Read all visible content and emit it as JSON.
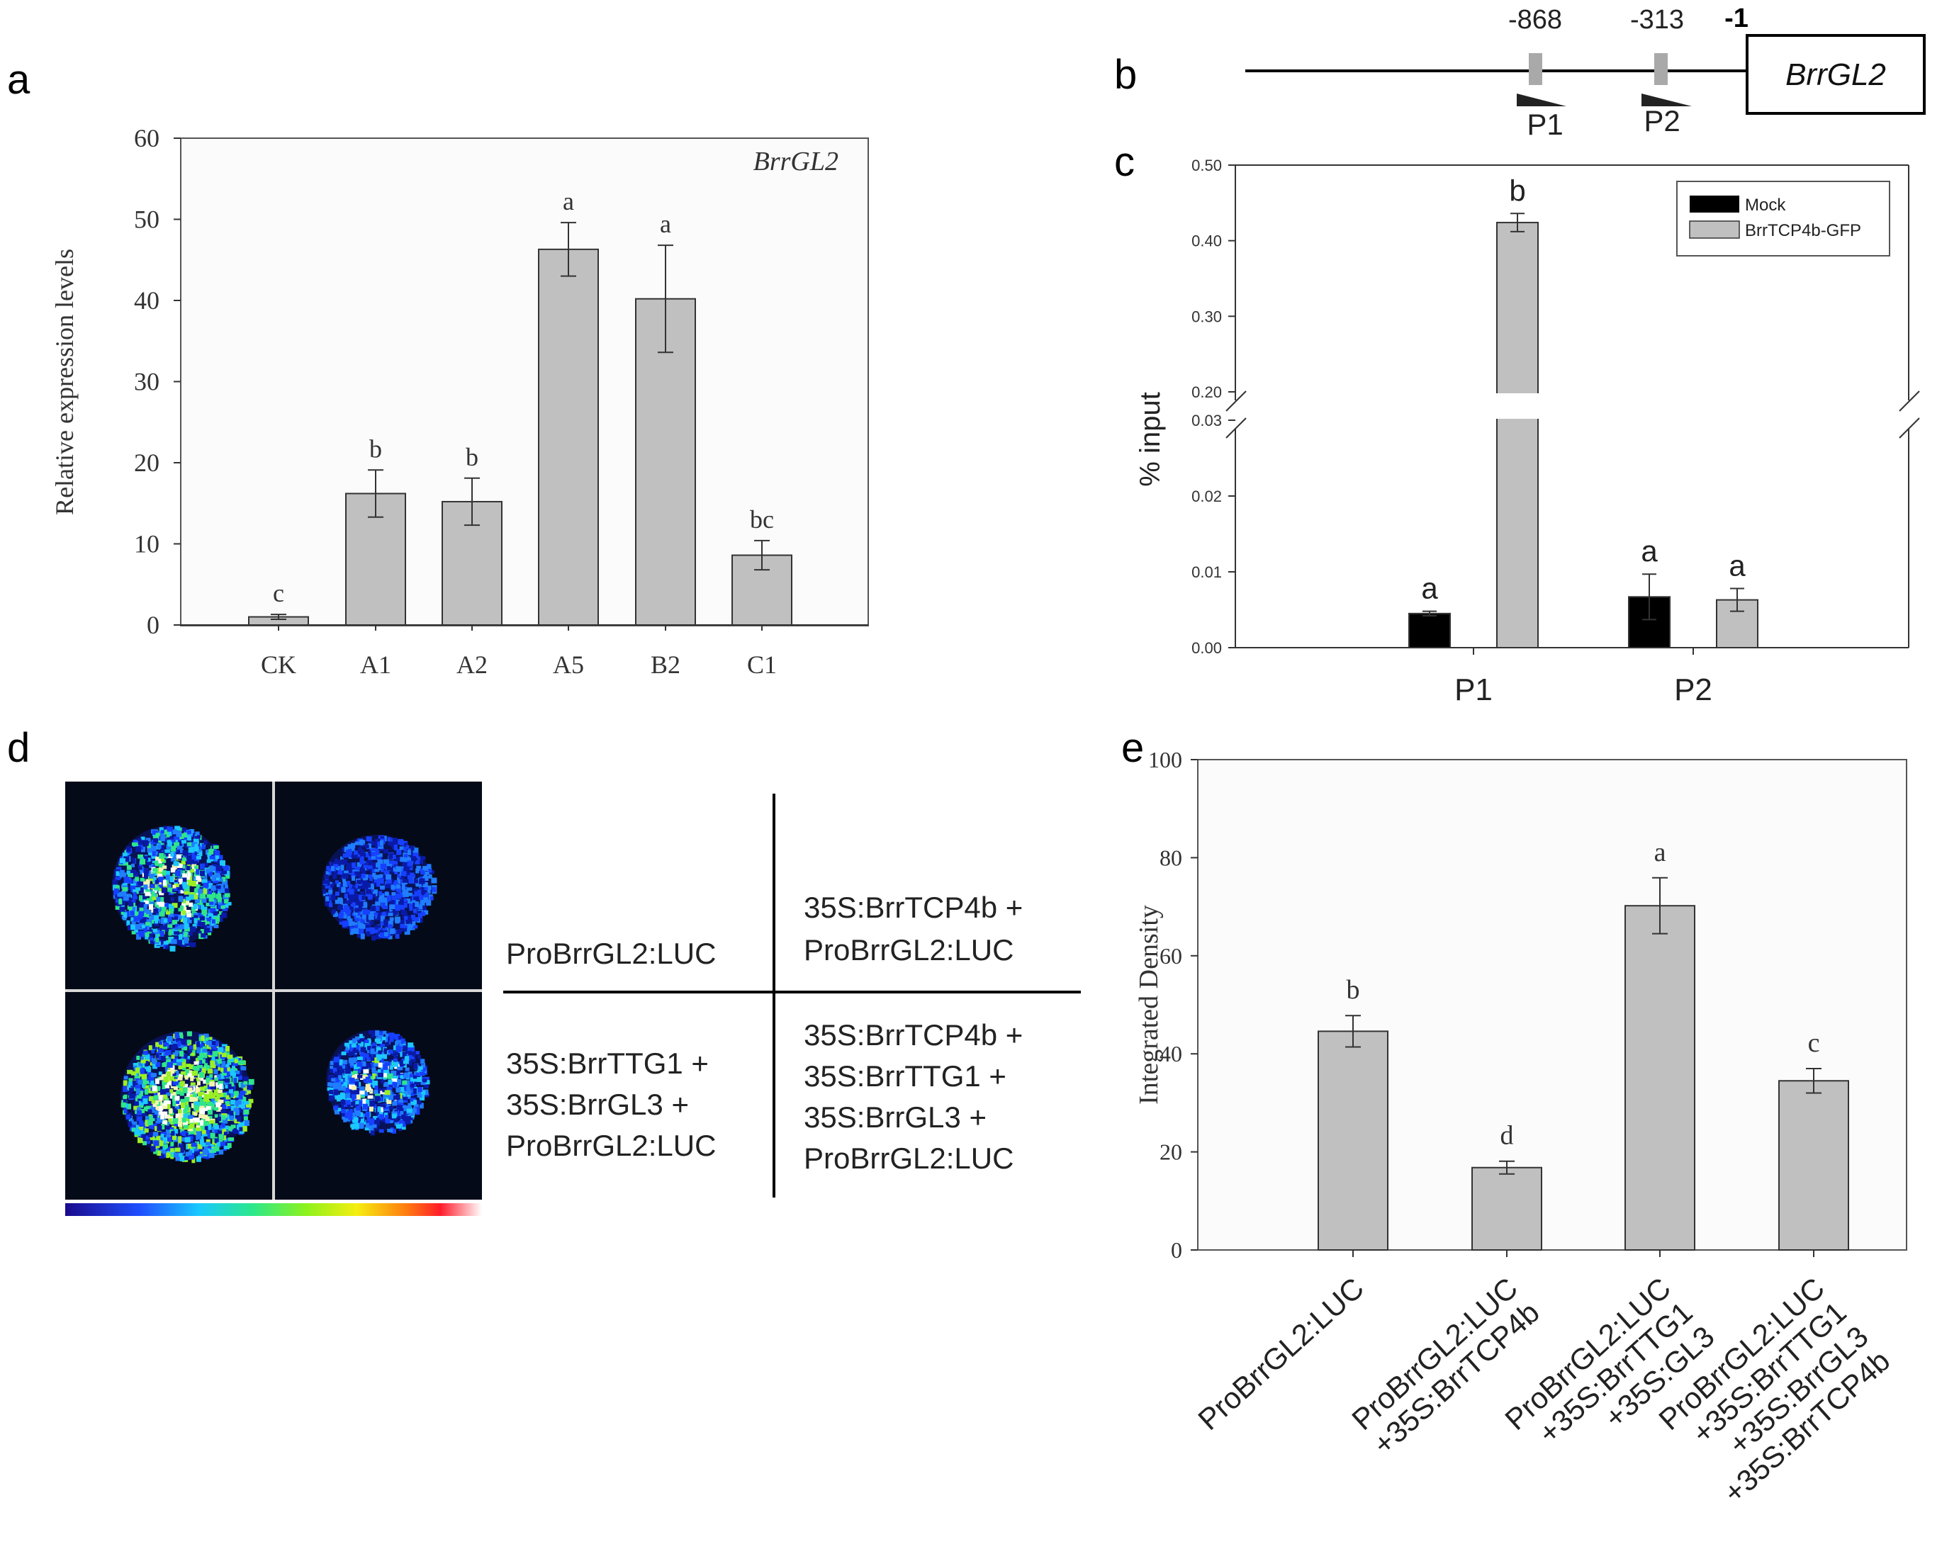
{
  "panels": {
    "a": "a",
    "b": "b",
    "c": "c",
    "d": "d",
    "e": "e"
  },
  "chart_data": [
    {
      "panel": "a",
      "type": "bar",
      "title": "BrrGL2",
      "xlabel": "",
      "ylabel": "Relative expression levels",
      "categories": [
        "CK",
        "A1",
        "A2",
        "A5",
        "B2",
        "C1"
      ],
      "values": [
        1.0,
        16.2,
        15.2,
        46.3,
        40.2,
        8.6
      ],
      "errors": [
        0.3,
        2.9,
        2.9,
        3.3,
        6.6,
        1.8
      ],
      "letters": [
        "c",
        "b",
        "b",
        "a",
        "a",
        "bc"
      ],
      "ylim": [
        0,
        60
      ],
      "yticks": [
        "0",
        "10",
        "20",
        "30",
        "40",
        "50",
        "60"
      ],
      "bar_color": "#c0c0c0"
    },
    {
      "panel": "c",
      "type": "bar",
      "title": "",
      "xlabel": "",
      "ylabel": "% input",
      "categories": [
        "P1",
        "P2"
      ],
      "series": [
        {
          "name": "Mock",
          "color": "#000000",
          "values": [
            0.0045,
            0.0067
          ],
          "errors": [
            0.0003,
            0.003
          ],
          "letters": [
            "a",
            "a"
          ]
        },
        {
          "name": "BrrTCP4b-GFP",
          "color": "#c0c0c0",
          "values": [
            0.424,
            0.0063
          ],
          "errors": [
            0.012,
            0.0015
          ],
          "letters": [
            "b",
            "a"
          ]
        }
      ],
      "axis_break": {
        "lower_range": [
          0,
          0.03
        ],
        "upper_range": [
          0.2,
          0.5
        ]
      },
      "yticks_lower": [
        "0.00",
        "0.01",
        "0.02",
        "0.03"
      ],
      "yticks_upper": [
        "0.20",
        "0.30",
        "0.40",
        "0.50"
      ],
      "legend_position": "top-right"
    },
    {
      "panel": "e",
      "type": "bar",
      "title": "",
      "xlabel": "",
      "ylabel": "Integrated Density",
      "categories": [
        [
          "ProBrrGL2:LUC"
        ],
        [
          "ProBrrGL2:LUC",
          "+35S:BrrTCP4b"
        ],
        [
          "ProBrrGL2:LUC",
          "+35S:BrrTTG1",
          "+35S:GL3"
        ],
        [
          "ProBrrGL2:LUC",
          "+35S:BrrTTG1",
          "+35S:BrrGL3",
          "+35S:BrrTCP4b"
        ]
      ],
      "values": [
        44.6,
        16.8,
        70.2,
        34.5
      ],
      "errors": [
        3.2,
        1.3,
        5.7,
        2.5
      ],
      "letters": [
        "b",
        "d",
        "a",
        "c"
      ],
      "ylim": [
        0,
        100
      ],
      "yticks": [
        "0",
        "20",
        "40",
        "60",
        "80",
        "100"
      ],
      "bar_color": "#c0c0c0"
    }
  ],
  "panel_b": {
    "positions": [
      "-868",
      "-313",
      "-1"
    ],
    "primers": [
      "P1",
      "P2"
    ],
    "gene": "BrrGL2"
  },
  "panel_d": {
    "top_left": "ProBrrGL2:LUC",
    "top_right": [
      "35S:BrrTCP4b +",
      "ProBrrGL2:LUC"
    ],
    "bottom_left": [
      "35S:BrrTTG1  +",
      "35S:BrrGL3 +",
      "ProBrrGL2:LUC"
    ],
    "bottom_right": [
      "35S:BrrTCP4b  +",
      "35S:BrrTTG1  +",
      "35S:BrrGL3 +",
      "ProBrrGL2:LUC"
    ]
  }
}
